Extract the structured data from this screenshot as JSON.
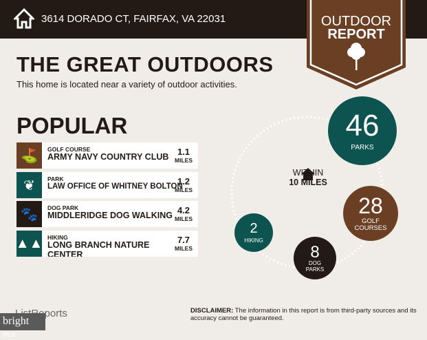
{
  "header": {
    "address": "3614 DORADO CT, FAIRFAX, VA 22031",
    "icon": "house-icon"
  },
  "banner": {
    "line1": "OUTDOOR",
    "line2": "REPORT",
    "icon": "tree-icon"
  },
  "title": "THE GREAT OUTDOORS",
  "subtitle": "This home is located near a variety of outdoor activities.",
  "popular": {
    "heading": "POPULAR",
    "items": [
      {
        "category": "GOLF COURSE",
        "name": "ARMY NAVY COUNTRY CLUB",
        "distance": "1.1",
        "unit": "MILES",
        "icon": "golf-bag-icon",
        "color": "#6b3f24"
      },
      {
        "category": "PARK",
        "name": "LAW OFFICE OF WHITNEY BOLTON",
        "distance": "1.2",
        "unit": "MILES",
        "icon": "park-icon",
        "color": "#0d5451"
      },
      {
        "category": "DOG PARK",
        "name": "MIDDLERIDGE DOG WALKING",
        "distance": "4.2",
        "unit": "MILES",
        "icon": "paw-icon",
        "color": "#231a16"
      },
      {
        "category": "HIKING",
        "name": "LONG BRANCH NATURE CENTER",
        "distance": "7.7",
        "unit": "MILES",
        "icon": "pine-trees-icon",
        "color": "#0d5451"
      }
    ]
  },
  "summary": {
    "within1": "WITHIN",
    "within2": "10 MILES",
    "parks": {
      "count": "46",
      "label": "PARKS"
    },
    "golf": {
      "count": "28",
      "label1": "GOLF",
      "label2": "COURSES"
    },
    "dog": {
      "count": "8",
      "label1": "DOG",
      "label2": "PARKS"
    },
    "hiking": {
      "count": "2",
      "label": "HIKING"
    }
  },
  "footer": {
    "logo": "ListReports",
    "mls": "bright",
    "mls2": "MLS",
    "disclaimer_label": "DISCLAIMER:",
    "disclaimer": " The information in this report is from third-party sources and its accuracy cannot be guaranteed."
  }
}
